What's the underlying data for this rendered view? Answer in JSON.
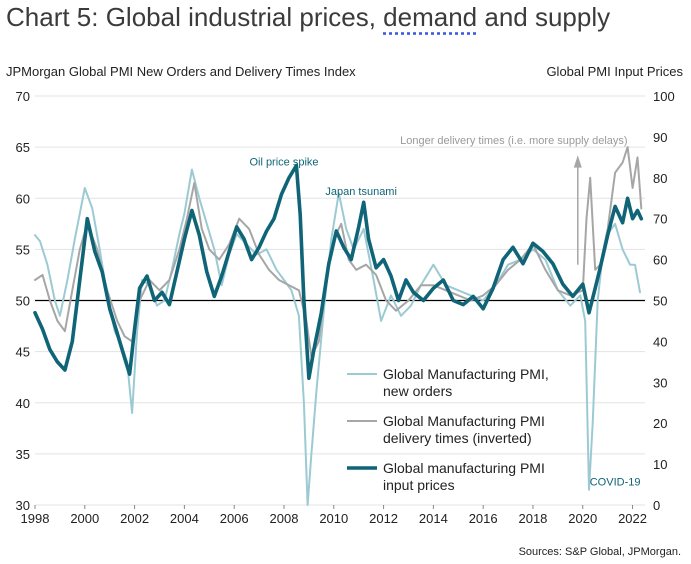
{
  "title_prefix": "Chart 5: Global industrial prices, ",
  "title_underlined": "demand",
  "title_suffix": " and supply",
  "left_axis_title": "JPMorgan Global PMI New Orders and Delivery Times Index",
  "right_axis_title": "Global PMI Input Prices",
  "source": "Sources: S&P Global, JPMorgan.",
  "colors": {
    "new_orders": "#9ccad3",
    "delivery": "#a6a6a6",
    "input_prices": "#0f6577",
    "annotation": "#0f6577",
    "arrow": "#a6a6a6"
  },
  "chart_data": {
    "type": "line",
    "xlim": [
      1998,
      2022.5
    ],
    "ylim_left": [
      30,
      70
    ],
    "ylim_right": [
      0,
      100
    ],
    "x_ticks": [
      1998,
      2000,
      2002,
      2004,
      2006,
      2008,
      2010,
      2012,
      2014,
      2016,
      2018,
      2020,
      2022
    ],
    "x_tick_labels": [
      "1998",
      "2000",
      "2002",
      "2004",
      "2006",
      "2008",
      "2010",
      "2012",
      "2014",
      "2016",
      "2018",
      "2020",
      "2022"
    ],
    "y_left_ticks": [
      30,
      35,
      40,
      45,
      50,
      55,
      60,
      65,
      70
    ],
    "y_left_tick_labels": [
      "30",
      "35",
      "40",
      "45",
      "50",
      "55",
      "60",
      "65",
      "70"
    ],
    "y_right_ticks": [
      0,
      10,
      20,
      30,
      40,
      50,
      60,
      70,
      80,
      90,
      100
    ],
    "y_right_tick_labels": [
      "0",
      "10",
      "20",
      "30",
      "40",
      "50",
      "60",
      "70",
      "80",
      "90",
      "100"
    ],
    "reference_line": 50,
    "grid": "horizontal",
    "legend_position": "bottom-center",
    "annotations": [
      {
        "text": "Oil price spike",
        "x": 2008.0,
        "y": 63.2
      },
      {
        "text": "Japan tsunami",
        "x": 2011.1,
        "y": 60.3
      },
      {
        "text": "Longer delivery times (i.e. more supply delays)",
        "x": 2021.8,
        "y": 65.3
      },
      {
        "text": "COVID-19",
        "x": 2021.3,
        "y": 31.9
      }
    ],
    "series": [
      {
        "name": "Global Manufacturing PMI, new orders",
        "axis": "left",
        "x": [
          1998.0,
          1998.2,
          1998.5,
          1998.8,
          1999.0,
          1999.3,
          1999.6,
          1999.8,
          2000.0,
          2000.3,
          2000.6,
          2000.9,
          2001.2,
          2001.5,
          2001.7,
          2001.9,
          2002.1,
          2002.3,
          2002.6,
          2002.9,
          2003.2,
          2003.5,
          2003.8,
          2004.0,
          2004.3,
          2004.6,
          2004.9,
          2005.2,
          2005.5,
          2005.8,
          2006.1,
          2006.5,
          2006.9,
          2007.3,
          2007.7,
          2008.0,
          2008.3,
          2008.6,
          2008.8,
          2008.95,
          2009.1,
          2009.3,
          2009.6,
          2009.9,
          2010.2,
          2010.5,
          2010.8,
          2011.2,
          2011.6,
          2011.9,
          2012.3,
          2012.7,
          2013.1,
          2013.5,
          2014.0,
          2014.5,
          2015.0,
          2015.5,
          2016.0,
          2016.5,
          2017.0,
          2017.5,
          2018.0,
          2018.5,
          2019.0,
          2019.5,
          2019.9,
          2020.1,
          2020.25,
          2020.4,
          2020.6,
          2020.8,
          2021.0,
          2021.3,
          2021.6,
          2021.9,
          2022.1,
          2022.3
        ],
        "values": [
          56.4,
          55.8,
          53.5,
          50.0,
          48.5,
          52.0,
          56.0,
          58.5,
          61.0,
          59.0,
          55.0,
          50.5,
          47.0,
          45.5,
          44.0,
          39.0,
          47.0,
          52.0,
          51.5,
          49.5,
          50.0,
          53.0,
          56.5,
          58.5,
          62.8,
          60.0,
          57.5,
          55.0,
          51.5,
          54.5,
          56.5,
          55.5,
          54.5,
          55.0,
          53.0,
          52.0,
          51.0,
          48.5,
          40.0,
          30.0,
          35.0,
          41.0,
          49.0,
          56.0,
          60.5,
          57.0,
          55.0,
          57.0,
          52.0,
          48.0,
          50.5,
          48.5,
          49.5,
          51.5,
          53.5,
          51.5,
          51.0,
          50.5,
          50.0,
          51.5,
          53.5,
          54.0,
          55.0,
          54.0,
          51.0,
          49.5,
          50.5,
          48.0,
          31.5,
          38.0,
          50.0,
          54.5,
          56.5,
          57.5,
          55.0,
          53.5,
          53.5,
          50.8
        ]
      },
      {
        "name": "Global Manufacturing PMI delivery times (inverted)",
        "axis": "left",
        "x": [
          1998.0,
          1998.3,
          1998.6,
          1998.9,
          1999.2,
          1999.5,
          1999.8,
          2000.1,
          2000.5,
          2000.9,
          2001.3,
          2001.6,
          2001.9,
          2002.2,
          2002.6,
          2003.0,
          2003.4,
          2003.8,
          2004.1,
          2004.4,
          2004.7,
          2005.0,
          2005.4,
          2005.8,
          2006.2,
          2006.6,
          2007.0,
          2007.4,
          2007.8,
          2008.2,
          2008.6,
          2008.9,
          2009.1,
          2009.4,
          2009.7,
          2010.0,
          2010.3,
          2010.6,
          2010.9,
          2011.3,
          2011.7,
          2012.1,
          2012.5,
          2013.0,
          2013.5,
          2014.0,
          2014.5,
          2015.0,
          2015.5,
          2016.0,
          2016.5,
          2017.0,
          2017.5,
          2018.0,
          2018.5,
          2019.0,
          2019.5,
          2020.0,
          2020.15,
          2020.3,
          2020.5,
          2020.7,
          2021.0,
          2021.3,
          2021.6,
          2021.8,
          2022.0,
          2022.2,
          2022.35
        ],
        "values": [
          52.0,
          52.5,
          50.0,
          48.0,
          47.0,
          51.0,
          55.0,
          57.5,
          55.0,
          51.0,
          48.0,
          46.5,
          46.0,
          50.0,
          52.0,
          51.0,
          52.0,
          55.0,
          58.0,
          61.5,
          57.0,
          55.0,
          54.0,
          55.5,
          58.0,
          57.0,
          54.5,
          53.0,
          52.0,
          51.5,
          51.0,
          48.0,
          44.5,
          46.0,
          52.0,
          56.0,
          57.5,
          54.0,
          53.0,
          53.5,
          52.5,
          50.0,
          49.0,
          50.0,
          51.5,
          51.5,
          51.0,
          50.5,
          50.0,
          50.5,
          51.5,
          53.0,
          54.0,
          55.5,
          53.0,
          51.0,
          50.5,
          51.0,
          58.0,
          62.0,
          53.0,
          53.5,
          57.0,
          62.5,
          63.5,
          65.0,
          61.0,
          64.0,
          59.0
        ]
      },
      {
        "name": "Global manufacturing PMI input prices",
        "axis": "right",
        "x": [
          1998.0,
          1998.3,
          1998.6,
          1998.9,
          1999.2,
          1999.5,
          1999.8,
          2000.1,
          2000.4,
          2000.7,
          2001.0,
          2001.3,
          2001.6,
          2001.8,
          2002.0,
          2002.2,
          2002.5,
          2002.8,
          2003.1,
          2003.4,
          2003.7,
          2004.0,
          2004.3,
          2004.6,
          2004.9,
          2005.2,
          2005.5,
          2005.8,
          2006.1,
          2006.4,
          2006.7,
          2007.0,
          2007.3,
          2007.6,
          2007.9,
          2008.2,
          2008.5,
          2008.65,
          2008.8,
          2009.0,
          2009.2,
          2009.5,
          2009.8,
          2010.1,
          2010.4,
          2010.7,
          2011.0,
          2011.2,
          2011.4,
          2011.7,
          2012.0,
          2012.3,
          2012.6,
          2012.9,
          2013.2,
          2013.6,
          2014.0,
          2014.4,
          2014.8,
          2015.2,
          2015.6,
          2016.0,
          2016.4,
          2016.8,
          2017.2,
          2017.6,
          2018.0,
          2018.4,
          2018.8,
          2019.2,
          2019.6,
          2020.0,
          2020.25,
          2020.5,
          2020.7,
          2021.0,
          2021.3,
          2021.6,
          2021.8,
          2022.0,
          2022.2,
          2022.35
        ],
        "values": [
          47.0,
          43.0,
          38.0,
          35.0,
          33.0,
          40.0,
          55.0,
          70.0,
          62.0,
          57.0,
          48.0,
          42.0,
          36.0,
          32.0,
          43.0,
          53.0,
          56.0,
          50.0,
          52.0,
          49.0,
          57.0,
          65.0,
          72.0,
          66.0,
          57.0,
          51.0,
          56.0,
          62.0,
          68.0,
          65.0,
          60.0,
          63.0,
          67.0,
          70.0,
          76.0,
          80.0,
          83.0,
          71.0,
          50.0,
          31.0,
          38.0,
          47.0,
          59.0,
          67.0,
          63.0,
          60.0,
          68.0,
          74.0,
          65.0,
          58.0,
          60.0,
          56.0,
          50.0,
          55.0,
          52.0,
          50.0,
          53.0,
          55.0,
          50.0,
          49.0,
          51.0,
          48.0,
          53.0,
          60.0,
          63.0,
          59.0,
          64.0,
          62.0,
          59.0,
          54.0,
          51.0,
          54.0,
          47.0,
          53.0,
          58.0,
          66.0,
          73.0,
          69.0,
          75.0,
          70.0,
          72.0,
          70.0
        ]
      }
    ]
  }
}
